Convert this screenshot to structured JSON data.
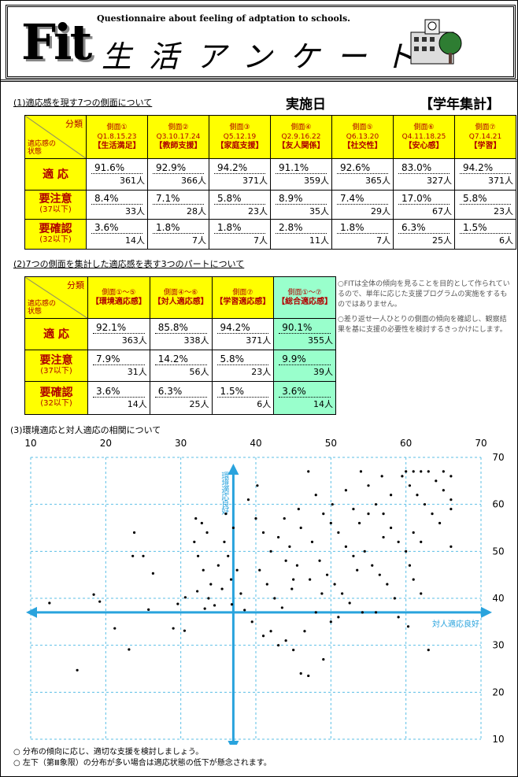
{
  "header": {
    "logo": "Fit",
    "subtitle": "Questionnaire about feeling of adptation to schools.",
    "title": "生活アンケート"
  },
  "section1": {
    "heading": "(1)適応感を現す7つの側面について",
    "date_label": "実施日",
    "scope": "【学年集計】",
    "table": {
      "corner_top": "分類",
      "corner_bottom": "適応感の状態",
      "columns": [
        {
          "name": "側面①",
          "questions": "Q1.8.15.23",
          "label": "【生活満足】"
        },
        {
          "name": "側面②",
          "questions": "Q3.10.17.24",
          "label": "【教師支援】"
        },
        {
          "name": "側面③",
          "questions": "Q5.12.19",
          "label": "【家庭支援】"
        },
        {
          "name": "側面④",
          "questions": "Q2.9.16.22",
          "label": "【友人関係】"
        },
        {
          "name": "側面⑤",
          "questions": "Q6.13.20",
          "label": "【社交性】"
        },
        {
          "name": "側面⑥",
          "questions": "Q4.11.18.25",
          "label": "【安心感】"
        },
        {
          "name": "側面⑦",
          "questions": "Q7.14.21",
          "label": "【学習】"
        }
      ],
      "rows": [
        {
          "label": "適 応",
          "cells": [
            {
              "percent": "91.6%",
              "count": "361人"
            },
            {
              "percent": "92.9%",
              "count": "366人"
            },
            {
              "percent": "94.2%",
              "count": "371人"
            },
            {
              "percent": "91.1%",
              "count": "359人"
            },
            {
              "percent": "92.6%",
              "count": "365人"
            },
            {
              "percent": "83.0%",
              "count": "327人"
            },
            {
              "percent": "94.2%",
              "count": "371人"
            }
          ]
        },
        {
          "label": "要注意",
          "note": "(37以下)",
          "cells": [
            {
              "percent": "8.4%",
              "count": "33人"
            },
            {
              "percent": "7.1%",
              "count": "28人"
            },
            {
              "percent": "5.8%",
              "count": "23人"
            },
            {
              "percent": "8.9%",
              "count": "35人"
            },
            {
              "percent": "7.4%",
              "count": "29人"
            },
            {
              "percent": "17.0%",
              "count": "67人"
            },
            {
              "percent": "5.8%",
              "count": "23人"
            }
          ]
        },
        {
          "label": "要確認",
          "note": "(32以下)",
          "cells": [
            {
              "percent": "3.6%",
              "count": "14人"
            },
            {
              "percent": "1.8%",
              "count": "7人"
            },
            {
              "percent": "1.8%",
              "count": "7人"
            },
            {
              "percent": "2.8%",
              "count": "11人"
            },
            {
              "percent": "1.8%",
              "count": "7人"
            },
            {
              "percent": "6.3%",
              "count": "25人"
            },
            {
              "percent": "1.5%",
              "count": "6人"
            }
          ]
        }
      ]
    }
  },
  "section2": {
    "heading": "(2)7つの側面を集計した適応感を表す3つのパートについて",
    "table": {
      "corner_top": "分類",
      "corner_bottom": "適応感の状態",
      "columns": [
        {
          "name": "側面①～⑤",
          "label": "【環境適応感】"
        },
        {
          "name": "側面④～⑥",
          "label": "【対人適応感】"
        },
        {
          "name": "側面⑦",
          "label": "【学習適応感】"
        },
        {
          "name": "側面①～⑦",
          "label": "【総合適応感】"
        }
      ],
      "rows": [
        {
          "label": "適 応",
          "cells": [
            {
              "percent": "92.1%",
              "count": "363人"
            },
            {
              "percent": "85.8%",
              "count": "338人"
            },
            {
              "percent": "94.2%",
              "count": "371人"
            },
            {
              "percent": "90.1%",
              "count": "355人"
            }
          ]
        },
        {
          "label": "要注意",
          "note": "(37以下)",
          "cells": [
            {
              "percent": "7.9%",
              "count": "31人"
            },
            {
              "percent": "14.2%",
              "count": "56人"
            },
            {
              "percent": "5.8%",
              "count": "23人"
            },
            {
              "percent": "9.9%",
              "count": "39人"
            }
          ]
        },
        {
          "label": "要確認",
          "note": "(32以下)",
          "cells": [
            {
              "percent": "3.6%",
              "count": "14人"
            },
            {
              "percent": "6.3%",
              "count": "25人"
            },
            {
              "percent": "1.5%",
              "count": "6人"
            },
            {
              "percent": "3.6%",
              "count": "14人"
            }
          ]
        }
      ]
    },
    "notes": [
      "○FITは全体の傾向を見ることを目的として作られているので、単年に応じた支援プログラムの実施をするものではありません。",
      "○差り返せ一人ひとりの側面の傾向を確認し、観察結果を基に支援の必要性を検討するきっかけにします。"
    ]
  },
  "section3": {
    "heading": "(3)環境適応と対人適応の相関について"
  },
  "chart_data": {
    "type": "scatter",
    "x_label": "対人適応良好",
    "y_label": "環境適応良好",
    "color": "#000000",
    "grid": true,
    "xlim": [
      10,
      70
    ],
    "ylim": [
      10,
      70
    ],
    "xticks": [
      10,
      20,
      30,
      40,
      50,
      60,
      70
    ],
    "yticks": [
      10,
      20,
      30,
      40,
      50,
      60,
      70
    ],
    "x_threshold": 37,
    "y_threshold": 37,
    "x": [
      16.2,
      12.5,
      18.4,
      19.2,
      21.2,
      23.1,
      23.8,
      23.6,
      25,
      26.3,
      25.7,
      29,
      29.6,
      30.5,
      30.6,
      32,
      32.8,
      33.5,
      31.8,
      32.3,
      33,
      34,
      33.7,
      32.2,
      34.5,
      35,
      35.8,
      36.3,
      36.7,
      35.5,
      37,
      36,
      37.5,
      38,
      38.5,
      33.2,
      36.8,
      39,
      40,
      41,
      42,
      43,
      44,
      45,
      46,
      40.5,
      41.5,
      42.5,
      43.5,
      44.5,
      45.5,
      39.5,
      42,
      43,
      44,
      45,
      46,
      47,
      46.5,
      41,
      44.8,
      45.7,
      40.2,
      43.8,
      47,
      48,
      49,
      50,
      51,
      52,
      53,
      47.5,
      48.5,
      49.5,
      50.5,
      51.5,
      52.5,
      53.5,
      48,
      49,
      50,
      51,
      52,
      53,
      47.2,
      50.2,
      48.8,
      54,
      55,
      56,
      57,
      58,
      59,
      54.5,
      55.5,
      56.5,
      57.5,
      58.5,
      54.2,
      56,
      59,
      57,
      55,
      58,
      59.5,
      56.8,
      53.8,
      60,
      61,
      62,
      63,
      64,
      65,
      66,
      60.5,
      61.5,
      62.5,
      63.5,
      64.5,
      61,
      62,
      60,
      60.5,
      61,
      62,
      60.3,
      63,
      66,
      66,
      66,
      65
    ],
    "values": [
      24.7,
      39,
      40.8,
      39.3,
      33.6,
      29.1,
      54,
      49,
      49,
      45.3,
      37.6,
      33.6,
      38.8,
      33.1,
      40.2,
      57,
      56,
      54,
      52,
      49,
      46,
      43,
      40,
      41.5,
      38.5,
      47,
      52,
      49,
      44,
      42,
      55,
      58,
      46,
      41,
      37.5,
      37.8,
      38.7,
      61,
      57,
      54,
      50,
      53,
      48,
      44,
      55,
      46,
      43,
      40,
      38,
      51,
      47,
      35,
      33,
      30,
      31,
      29,
      24,
      23.5,
      33,
      32,
      42,
      59,
      64,
      57,
      67,
      62,
      58,
      56,
      54,
      51,
      49,
      52,
      48,
      45,
      43,
      41,
      39,
      46,
      37,
      27,
      35,
      36,
      63,
      59,
      44,
      60,
      41,
      67,
      64,
      60,
      58,
      55,
      52,
      50,
      47,
      45,
      43,
      40,
      37,
      37,
      36,
      53,
      58,
      62,
      66,
      66,
      56,
      67,
      67,
      67,
      67,
      65,
      63,
      61,
      64,
      62,
      60,
      58,
      56,
      54,
      52,
      50,
      47,
      44,
      41,
      34,
      29,
      51,
      59,
      66,
      67
    ]
  },
  "footer": {
    "notes": [
      "○ 分布の傾向に応じ、適切な支援を検討しましょう。",
      "○ 左下（第Ⅲ象限）の分布が多い場合は適応状態の低下が懸念されます。"
    ]
  }
}
